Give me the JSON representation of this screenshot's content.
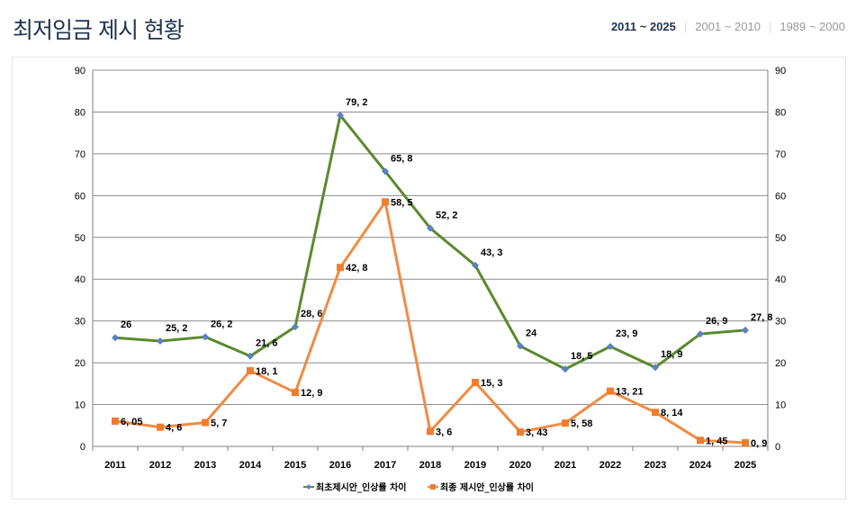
{
  "page": {
    "title": "최저임금 제시 현황",
    "tabs": [
      {
        "label": "2011 ~ 2025",
        "active": true
      },
      {
        "label": "2001 ~ 2010",
        "active": false
      },
      {
        "label": "1989 ~ 2000",
        "active": false
      }
    ]
  },
  "chart_data": {
    "type": "line",
    "categories": [
      "2011",
      "2012",
      "2013",
      "2014",
      "2015",
      "2016",
      "2017",
      "2018",
      "2019",
      "2020",
      "2021",
      "2022",
      "2023",
      "2024",
      "2025"
    ],
    "ylim": [
      0,
      90
    ],
    "yticks": [
      0,
      10,
      20,
      30,
      40,
      50,
      60,
      70,
      80,
      90
    ],
    "grid": true,
    "legend_position": "bottom",
    "series": [
      {
        "name": "최초제시안_인상률 차이",
        "color": "#5a8a2e",
        "marker": "diamond",
        "marker_color": "#5b7fc7",
        "values": [
          26,
          25.2,
          26.2,
          21.6,
          28.6,
          79.2,
          65.8,
          52.2,
          43.3,
          24,
          18.5,
          23.9,
          18.9,
          26.9,
          27.8
        ],
        "labels": [
          "26",
          "25, 2",
          "26, 2",
          "21, 6",
          "28, 6",
          "79, 2",
          "65, 8",
          "52, 2",
          "43, 3",
          "24",
          "18, 5",
          "23, 9",
          "18, 9",
          "26, 9",
          "27, 8"
        ]
      },
      {
        "name": "최종 제시안_인상률 차이",
        "color": "#f08b44",
        "marker": "square",
        "marker_color": "#f07d2e",
        "values": [
          6.05,
          4.6,
          5.7,
          18.1,
          12.9,
          42.8,
          58.5,
          3.6,
          15.3,
          3.43,
          5.58,
          13.21,
          8.14,
          1.45,
          0.9
        ],
        "labels": [
          "6, 05",
          "4, 6",
          "5, 7",
          "18, 1",
          "12, 9",
          "42, 8",
          "58, 5",
          "3, 6",
          "15, 3",
          "3, 43",
          "5, 58",
          "13, 21",
          "8, 14",
          "1, 45",
          "0, 9"
        ]
      }
    ]
  }
}
